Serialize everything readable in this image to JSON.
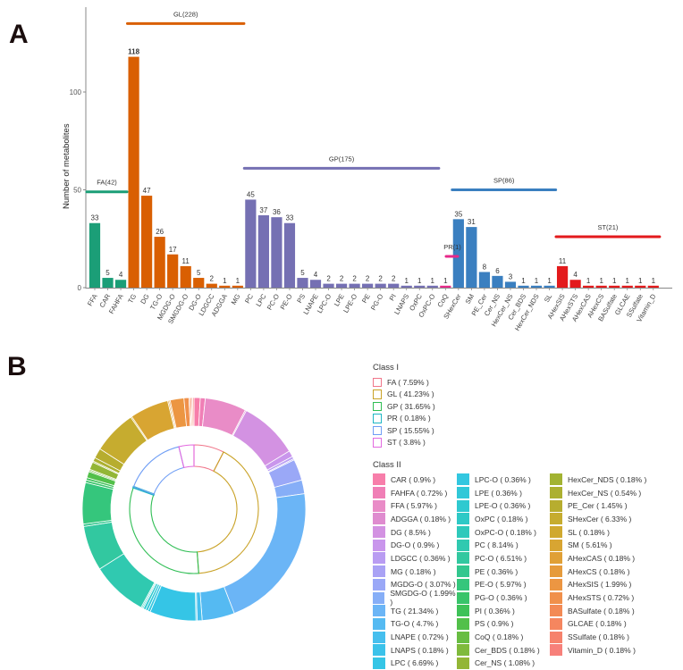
{
  "panels": {
    "a_label": "A",
    "b_label": "B"
  },
  "chart_data": [
    {
      "type": "bar",
      "title": "",
      "xlabel": "",
      "ylabel": "Number of metabolites",
      "ylim": [
        0,
        140
      ],
      "yticks": [
        0,
        50,
        100
      ],
      "grid": false,
      "categories": [
        "FFA",
        "CAR",
        "FAHFA",
        "TG",
        "DG",
        "TG-O",
        "MGDG-O",
        "SMGDG-O",
        "DG-O",
        "LDGCC",
        "ADGGA",
        "MG",
        "PC",
        "LPC",
        "PC-O",
        "PE-O",
        "PS",
        "LNAPE",
        "LPC-O",
        "LPE",
        "LPE-O",
        "PE",
        "PG-O",
        "PI",
        "LNAPS",
        "OxPC",
        "OxPC-O",
        "CoQ",
        "SHexCer",
        "SM",
        "PE_Cer",
        "Cer_NS",
        "HexCer_NS",
        "Cer_BDS",
        "HexCer_NDS",
        "SL",
        "AHexSIS",
        "AHexSTS",
        "AHexCAS",
        "AHexCS",
        "BASulfate",
        "GLCAE",
        "SSulfate",
        "Vitamin_D"
      ],
      "values": [
        33,
        5,
        4,
        118,
        47,
        26,
        17,
        11,
        5,
        2,
        1,
        1,
        45,
        37,
        36,
        33,
        5,
        4,
        2,
        2,
        2,
        2,
        2,
        2,
        1,
        1,
        1,
        1,
        35,
        31,
        8,
        6,
        3,
        1,
        1,
        1,
        11,
        4,
        1,
        1,
        1,
        1,
        1,
        1
      ],
      "bar_class": [
        "FA",
        "FA",
        "FA",
        "GL",
        "GL",
        "GL",
        "GL",
        "GL",
        "GL",
        "GL",
        "GL",
        "GL",
        "GP",
        "GP",
        "GP",
        "GP",
        "GP",
        "GP",
        "GP",
        "GP",
        "GP",
        "GP",
        "GP",
        "GP",
        "GP",
        "GP",
        "GP",
        "PR",
        "SP",
        "SP",
        "SP",
        "SP",
        "SP",
        "SP",
        "SP",
        "SP",
        "ST",
        "ST",
        "ST",
        "ST",
        "ST",
        "ST",
        "ST",
        "ST"
      ],
      "groups": [
        {
          "name": "FA",
          "label": "FA(42)",
          "total": 42,
          "color": "#1b9e77",
          "first": 0,
          "last": 2
        },
        {
          "name": "GL",
          "label": "GL(228)",
          "total": 228,
          "color": "#d95f02",
          "first": 3,
          "last": 11
        },
        {
          "name": "GP",
          "label": "GP(175)",
          "total": 175,
          "color": "#7570b3",
          "first": 12,
          "last": 26
        },
        {
          "name": "PR",
          "label": "PR(1)",
          "total": 1,
          "color": "#e7298a",
          "first": 27,
          "last": 27
        },
        {
          "name": "SP",
          "label": "SP(86)",
          "total": 86,
          "color": "#3a7fc0",
          "first": 28,
          "last": 35
        },
        {
          "name": "ST",
          "label": "ST(21)",
          "total": 21,
          "color": "#e31a1c",
          "first": 36,
          "last": 43
        }
      ]
    },
    {
      "type": "pie",
      "subtype": "sunburst-donut",
      "title": "",
      "legend_placement": "right",
      "class_i": {
        "title": "Class I",
        "items": [
          {
            "label": "FA ( 7.59% )",
            "name": "FA",
            "percent": 7.59,
            "color": "#f0768a"
          },
          {
            "label": "GL ( 41.23% )",
            "name": "GL",
            "percent": 41.23,
            "color": "#c9a227"
          },
          {
            "label": "GP ( 31.65% )",
            "name": "GP",
            "percent": 31.65,
            "color": "#2fbe54"
          },
          {
            "label": "PR ( 0.18% )",
            "name": "PR",
            "percent": 0.18,
            "color": "#1fb6c4"
          },
          {
            "label": "SP ( 15.55% )",
            "name": "SP",
            "percent": 15.55,
            "color": "#6f9ef5"
          },
          {
            "label": "ST ( 3.8% )",
            "name": "ST",
            "percent": 3.8,
            "color": "#e36ae0"
          }
        ]
      },
      "class_ii": {
        "title": "Class II",
        "items": [
          {
            "label": "CAR ( 0.9% )",
            "percent": 0.9,
            "color": "#f77eaa"
          },
          {
            "label": "FAHFA ( 0.72% )",
            "percent": 0.72,
            "color": "#f07fb6"
          },
          {
            "label": "FFA ( 5.97% )",
            "percent": 5.97,
            "color": "#e98cc7"
          },
          {
            "label": "ADGGA ( 0.18% )",
            "percent": 0.18,
            "color": "#df8ccf"
          },
          {
            "label": "DG ( 8.5% )",
            "percent": 8.5,
            "color": "#d392e2"
          },
          {
            "label": "DG-O ( 0.9% )",
            "percent": 0.9,
            "color": "#c996ec"
          },
          {
            "label": "LDGCC ( 0.36% )",
            "percent": 0.36,
            "color": "#b99cf2"
          },
          {
            "label": "MG ( 0.18% )",
            "percent": 0.18,
            "color": "#a9a2f5"
          },
          {
            "label": "MGDG-O ( 3.07% )",
            "percent": 3.07,
            "color": "#9aa8f7"
          },
          {
            "label": "SMGDG-O ( 1.99% )",
            "percent": 1.99,
            "color": "#86aef7"
          },
          {
            "label": "TG ( 21.34% )",
            "percent": 21.34,
            "color": "#6bb5f6"
          },
          {
            "label": "TG-O ( 4.7% )",
            "percent": 4.7,
            "color": "#55baf2"
          },
          {
            "label": "LNAPE ( 0.72% )",
            "percent": 0.72,
            "color": "#46bfee"
          },
          {
            "label": "LNAPS ( 0.18% )",
            "percent": 0.18,
            "color": "#3bc2ea"
          },
          {
            "label": "LPC ( 6.69% )",
            "percent": 6.69,
            "color": "#35c5e6"
          },
          {
            "label": "LPC-O ( 0.36% )",
            "percent": 0.36,
            "color": "#33c7e0"
          },
          {
            "label": "LPE ( 0.36% )",
            "percent": 0.36,
            "color": "#31c8d8"
          },
          {
            "label": "LPE-O ( 0.36% )",
            "percent": 0.36,
            "color": "#2fc9d0"
          },
          {
            "label": "OxPC ( 0.18% )",
            "percent": 0.18,
            "color": "#2ec9c6"
          },
          {
            "label": "OxPC-O ( 0.18% )",
            "percent": 0.18,
            "color": "#2ec9bb"
          },
          {
            "label": "PC ( 8.14% )",
            "percent": 8.14,
            "color": "#30c9b0"
          },
          {
            "label": "PC-O ( 6.51% )",
            "percent": 6.51,
            "color": "#32c8a0"
          },
          {
            "label": "PE ( 0.36% )",
            "percent": 0.36,
            "color": "#33c78f"
          },
          {
            "label": "PE-O ( 5.97% )",
            "percent": 5.97,
            "color": "#35c67c"
          },
          {
            "label": "PG-O ( 0.36% )",
            "percent": 0.36,
            "color": "#38c46a"
          },
          {
            "label": "PI ( 0.36% )",
            "percent": 0.36,
            "color": "#3ec258"
          },
          {
            "label": "PS ( 0.9% )",
            "percent": 0.9,
            "color": "#52c04a"
          },
          {
            "label": "CoQ ( 0.18% )",
            "percent": 0.18,
            "color": "#68bd42"
          },
          {
            "label": "Cer_BDS ( 0.18% )",
            "percent": 0.18,
            "color": "#7fba3c"
          },
          {
            "label": "Cer_NS ( 1.08% )",
            "percent": 1.08,
            "color": "#93b636"
          },
          {
            "label": "HexCer_NDS ( 0.18% )",
            "percent": 0.18,
            "color": "#a2b332"
          },
          {
            "label": "HexCer_NS ( 0.54% )",
            "percent": 0.54,
            "color": "#acb030"
          },
          {
            "label": "PE_Cer ( 1.45% )",
            "percent": 1.45,
            "color": "#b7ad2f"
          },
          {
            "label": "SHexCer ( 6.33% )",
            "percent": 6.33,
            "color": "#c6ac2f"
          },
          {
            "label": "SL ( 0.18% )",
            "percent": 0.18,
            "color": "#d0a92f"
          },
          {
            "label": "SM ( 5.61% )",
            "percent": 5.61,
            "color": "#d8a532"
          },
          {
            "label": "AHexCAS ( 0.18% )",
            "percent": 0.18,
            "color": "#e0a036"
          },
          {
            "label": "AHexCS ( 0.18% )",
            "percent": 0.18,
            "color": "#e69b3c"
          },
          {
            "label": "AHexSIS ( 1.99% )",
            "percent": 1.99,
            "color": "#ec9642"
          },
          {
            "label": "AHexSTS ( 0.72% )",
            "percent": 0.72,
            "color": "#f0904b"
          },
          {
            "label": "BASulfate ( 0.18% )",
            "percent": 0.18,
            "color": "#f38a55"
          },
          {
            "label": "GLCAE ( 0.18% )",
            "percent": 0.18,
            "color": "#f5865f"
          },
          {
            "label": "SSulfate ( 0.18% )",
            "percent": 0.18,
            "color": "#f6826c"
          },
          {
            "label": "Vitamin_D ( 0.18% )",
            "percent": 0.18,
            "color": "#f7807a"
          }
        ]
      }
    }
  ]
}
